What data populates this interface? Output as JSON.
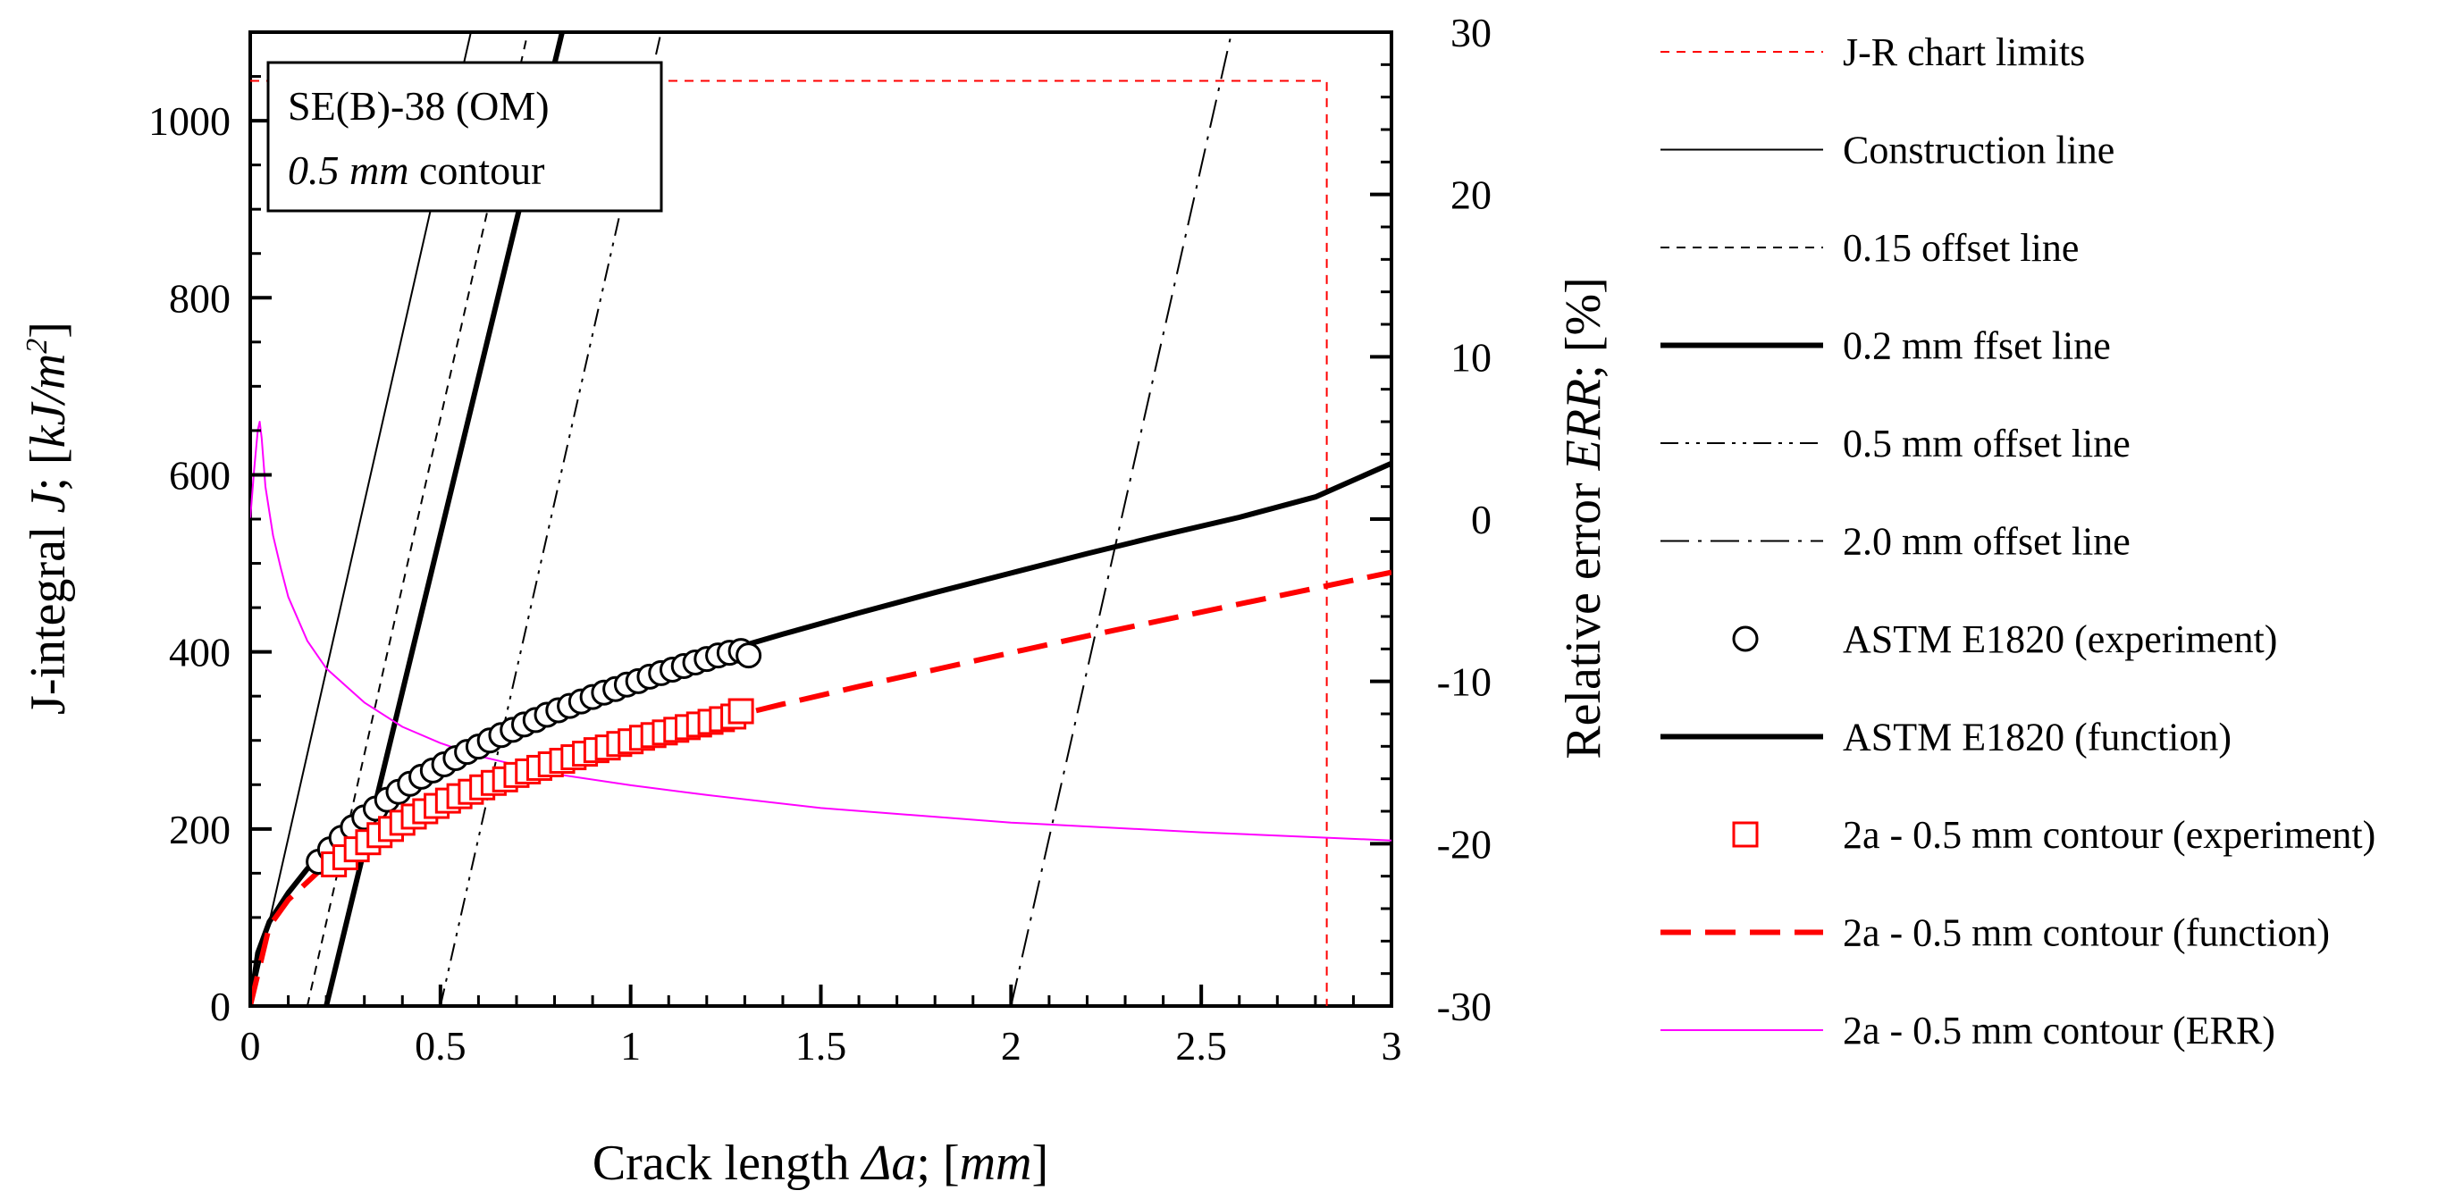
{
  "chart_data": {
    "type": "line",
    "annotation": {
      "line1": "SE(B)-38 (OM)",
      "line2_italic": "0.5 mm",
      "line2_rest": " contour"
    },
    "xlabel": {
      "prefix": "Crack length ",
      "italic": "Δa",
      "suffix": "; [",
      "unit_italic": "mm",
      "close": "]"
    },
    "ylabel": {
      "prefix": "J-integral ",
      "italic": "J",
      "suffix": "; [",
      "unit_italic": "kJ/m",
      "sup": "2",
      "close": "]"
    },
    "y2label": {
      "prefix": "Relative error ",
      "italic": "ERR",
      "suffix": "; [%]"
    },
    "xlim": [
      0,
      3
    ],
    "ylim": [
      0,
      1100
    ],
    "y2lim": [
      -30,
      30
    ],
    "x_ticks": [
      {
        "value": 0,
        "label": "0"
      },
      {
        "value": 0.5,
        "label": "0.5"
      },
      {
        "value": 1,
        "label": "1"
      },
      {
        "value": 1.5,
        "label": "1.5"
      },
      {
        "value": 2,
        "label": "2"
      },
      {
        "value": 2.5,
        "label": "2.5"
      },
      {
        "value": 3,
        "label": "3"
      }
    ],
    "y_ticks": [
      {
        "value": 0,
        "label": "0"
      },
      {
        "value": 200,
        "label": "200"
      },
      {
        "value": 400,
        "label": "400"
      },
      {
        "value": 600,
        "label": "600"
      },
      {
        "value": 800,
        "label": "800"
      },
      {
        "value": 1000,
        "label": "1000"
      }
    ],
    "y2_ticks": [
      {
        "value": -30,
        "label": "-30"
      },
      {
        "value": -20,
        "label": "-20"
      },
      {
        "value": -10,
        "label": "-10"
      },
      {
        "value": 0,
        "label": "0"
      },
      {
        "value": 10,
        "label": "10"
      },
      {
        "value": 20,
        "label": "20"
      },
      {
        "value": 30,
        "label": "30"
      }
    ],
    "series": [
      {
        "name": "J-R chart limits",
        "style": "short-dash",
        "color": "#ff0000",
        "width": 2,
        "x": [
          0,
          2.83,
          2.83
        ],
        "y": [
          1045,
          1045,
          0
        ]
      },
      {
        "name": "Construction line",
        "style": "solid",
        "color": "#000000",
        "width": 2,
        "x": [
          0,
          0.58
        ],
        "y": [
          0,
          1100
        ]
      },
      {
        "name": "0.15 offset line",
        "style": "short-dash",
        "color": "#000000",
        "width": 2,
        "x": [
          0.15,
          0.73
        ],
        "y": [
          0,
          1100
        ]
      },
      {
        "name": "0.2 mm ffset line",
        "style": "solid",
        "color": "#000000",
        "width": 6,
        "x": [
          0.2,
          0.82
        ],
        "y": [
          0,
          1100
        ]
      },
      {
        "name": "0.5 mm offset line",
        "style": "dash-dot-dot",
        "color": "#000000",
        "width": 2,
        "x": [
          0.5,
          1.08
        ],
        "y": [
          0,
          1100
        ]
      },
      {
        "name": "2.0 mm offset line",
        "style": "dash-dot",
        "color": "#000000",
        "width": 2,
        "x": [
          2.0,
          2.58
        ],
        "y": [
          0,
          1100
        ]
      },
      {
        "name": "ASTM E1820 (experiment)",
        "style": "markers",
        "marker": "circle",
        "color": "#000000",
        "x": [
          0.18,
          0.21,
          0.24,
          0.27,
          0.3,
          0.33,
          0.36,
          0.39,
          0.42,
          0.45,
          0.48,
          0.51,
          0.54,
          0.57,
          0.6,
          0.63,
          0.66,
          0.69,
          0.72,
          0.75,
          0.78,
          0.81,
          0.84,
          0.87,
          0.9,
          0.93,
          0.96,
          0.99,
          1.02,
          1.05,
          1.08,
          1.11,
          1.14,
          1.17,
          1.2,
          1.23,
          1.26,
          1.29,
          1.31
        ],
        "y": [
          163,
          177,
          190,
          202,
          213,
          223,
          233,
          242,
          251,
          259,
          266,
          273,
          280,
          287,
          293,
          300,
          306,
          312,
          318,
          323,
          329,
          334,
          339,
          344,
          349,
          354,
          358,
          363,
          367,
          372,
          376,
          380,
          384,
          388,
          392,
          396,
          399,
          401,
          396
        ]
      },
      {
        "name": "ASTM E1820 (function)",
        "style": "solid",
        "color": "#000000",
        "width": 6,
        "x": [
          0,
          0.02,
          0.05,
          0.1,
          0.15,
          0.2,
          0.3,
          0.4,
          0.5,
          0.6,
          0.8,
          1.0,
          1.2,
          1.4,
          1.6,
          1.8,
          2.0,
          2.2,
          2.4,
          2.6,
          2.8,
          3.0
        ],
        "y": [
          0,
          60,
          95,
          128,
          155,
          178,
          213,
          243,
          270,
          294,
          336,
          368,
          395,
          420,
          444,
          467,
          489,
          511,
          532,
          552,
          575,
          613
        ]
      },
      {
        "name": "2a - 0.5 mm contour (experiment)",
        "style": "markers",
        "marker": "square",
        "color": "#ff0000",
        "x": [
          0.22,
          0.25,
          0.28,
          0.31,
          0.34,
          0.37,
          0.4,
          0.43,
          0.46,
          0.49,
          0.52,
          0.55,
          0.58,
          0.61,
          0.64,
          0.67,
          0.7,
          0.73,
          0.76,
          0.79,
          0.82,
          0.85,
          0.88,
          0.91,
          0.94,
          0.97,
          1.0,
          1.03,
          1.06,
          1.09,
          1.12,
          1.15,
          1.18,
          1.21,
          1.24,
          1.27,
          1.29
        ],
        "y": [
          160,
          168,
          177,
          185,
          193,
          200,
          207,
          214,
          220,
          226,
          232,
          237,
          242,
          247,
          252,
          256,
          261,
          265,
          269,
          273,
          277,
          281,
          285,
          289,
          292,
          296,
          299,
          303,
          306,
          309,
          312,
          315,
          318,
          321,
          324,
          327,
          333
        ]
      },
      {
        "name": "2a - 0.5 mm contour (function)",
        "style": "long-dash",
        "color": "#ff0000",
        "width": 6,
        "x": [
          0,
          0.05,
          0.1,
          0.2,
          0.3,
          0.4,
          0.5,
          0.6,
          0.8,
          1.0,
          1.2,
          1.4,
          1.6,
          1.8,
          2.0,
          2.2,
          2.4,
          2.6,
          2.8,
          3.0
        ],
        "y": [
          0,
          90,
          120,
          160,
          188,
          210,
          229,
          245,
          274,
          298,
          320,
          341,
          361,
          380,
          399,
          418,
          436,
          454,
          472,
          490
        ]
      },
      {
        "name": "2a - 0.5 mm contour (ERR)",
        "style": "solid",
        "color": "#ff00ff",
        "width": 2,
        "axis": "y2",
        "x": [
          0,
          0.01,
          0.02,
          0.025,
          0.03,
          0.04,
          0.06,
          0.08,
          0.1,
          0.15,
          0.2,
          0.3,
          0.4,
          0.5,
          0.6,
          0.8,
          1.0,
          1.2,
          1.5,
          2.0,
          2.5,
          3.0
        ],
        "y": [
          0,
          3,
          5.5,
          6,
          5,
          2,
          -1,
          -3,
          -4.8,
          -7.5,
          -9.2,
          -11.3,
          -12.8,
          -13.8,
          -14.6,
          -15.7,
          -16.4,
          -17,
          -17.8,
          -18.7,
          -19.3,
          -19.8
        ]
      }
    ]
  }
}
